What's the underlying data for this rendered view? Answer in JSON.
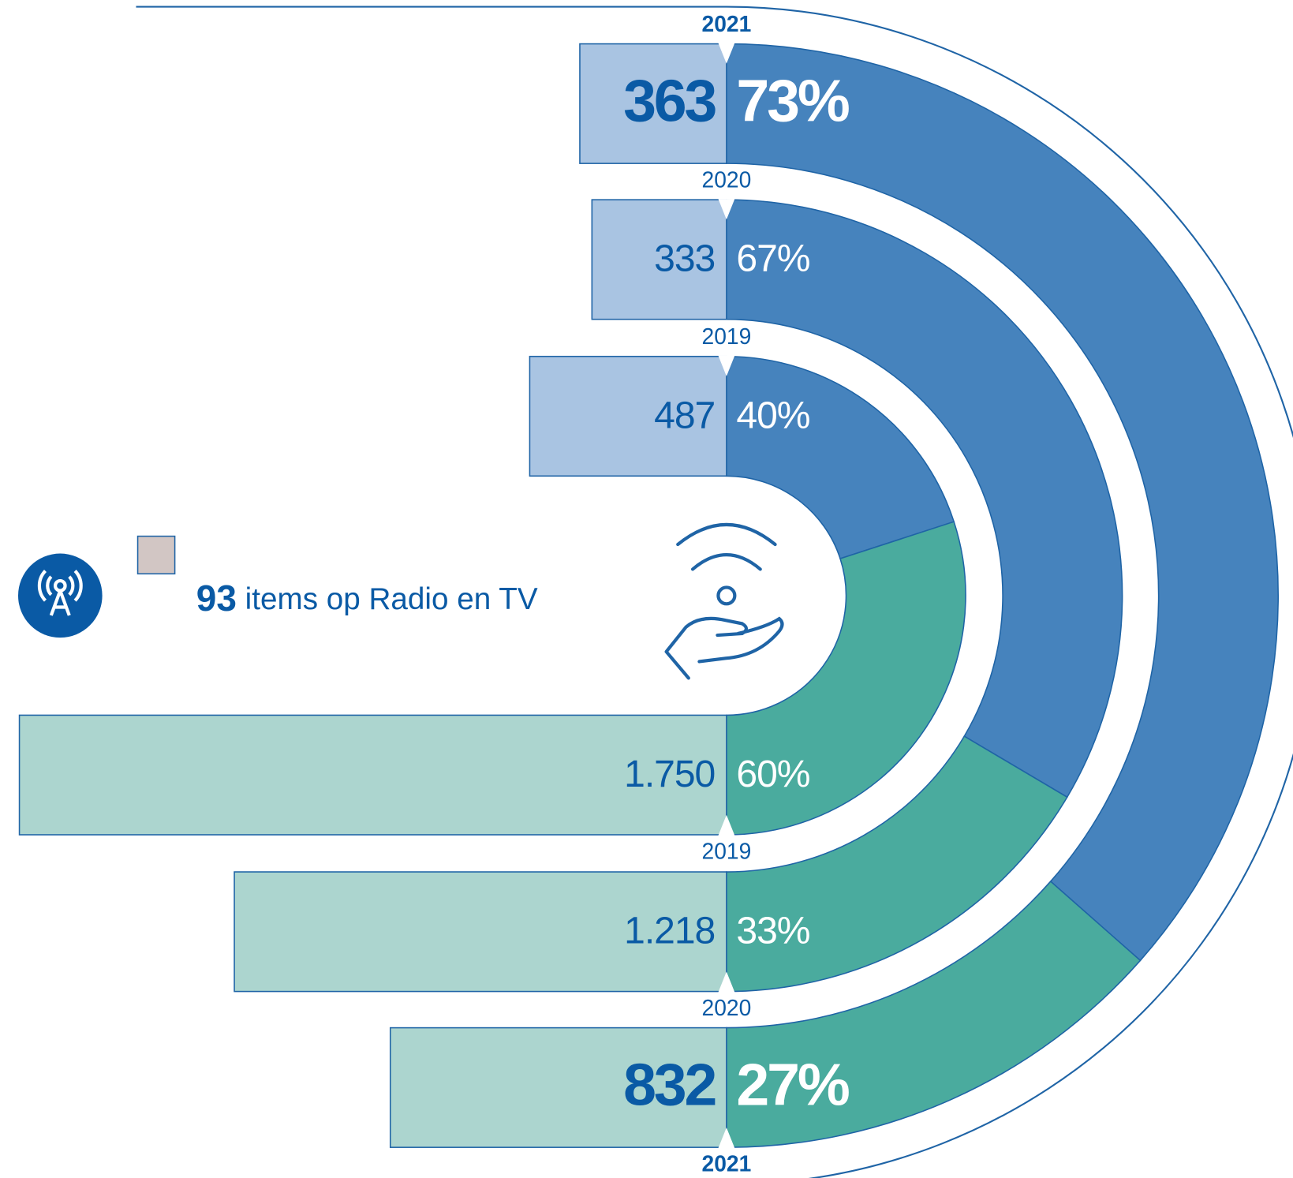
{
  "chart_data": {
    "type": "half-donut-bars",
    "rings": [
      {
        "label": "2019",
        "values": [
          487,
          1750
        ],
        "value_labels": [
          "487",
          "1.750"
        ],
        "shares": [
          40,
          60
        ],
        "share_labels": [
          "40%",
          "60%"
        ]
      },
      {
        "label": "2020",
        "values": [
          333,
          1218
        ],
        "value_labels": [
          "333",
          "1.218"
        ],
        "shares": [
          67,
          33
        ],
        "share_labels": [
          "67%",
          "33%"
        ]
      },
      {
        "label": "2021",
        "values": [
          363,
          832
        ],
        "value_labels": [
          "363",
          "832"
        ],
        "shares": [
          73,
          27
        ],
        "share_labels": [
          "73%",
          "27%"
        ]
      }
    ],
    "colors": {
      "top_bar": "#a9c4e2",
      "bottom_bar": "#acd5cf",
      "top_arc": "#4683bd",
      "bottom_arc": "#4aab9e",
      "outline": "#1f64a6",
      "text": "#0a5aa5"
    },
    "radio": {
      "value": 93,
      "text": "items op Radio en TV",
      "color": "#d2c6c4"
    }
  }
}
